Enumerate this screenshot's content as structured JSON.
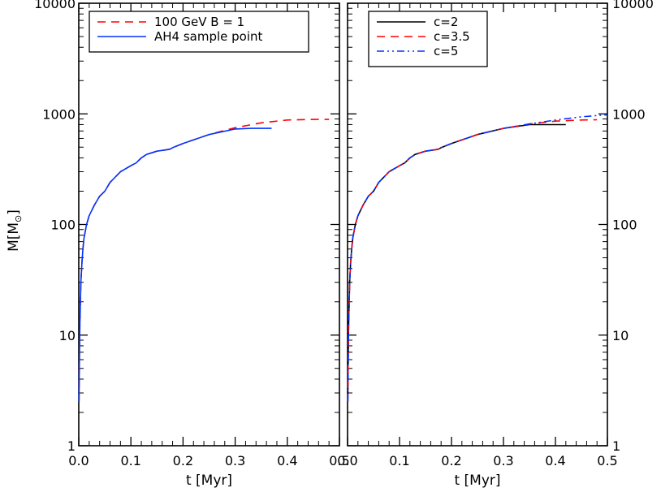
{
  "figure": {
    "y_axis_label_main": "M[M",
    "y_axis_label_sub": "⊙",
    "y_axis_label_close": "]",
    "y_ticks": [
      "1",
      "10",
      "100",
      "1000",
      "10000"
    ],
    "x_ticks": [
      "0.0",
      "0.1",
      "0.2",
      "0.3",
      "0.4",
      "0.5"
    ]
  },
  "chart_data": [
    {
      "type": "line",
      "title": "",
      "xlabel": "t [Myr]",
      "ylabel": "M[M⊙]",
      "yscale": "log",
      "xlim": [
        0.0,
        0.5
      ],
      "ylim": [
        1,
        10000
      ],
      "legend_position": "top-left",
      "series": [
        {
          "name": "100 GeV B = 1",
          "color": "#ff0000",
          "style": "dashed",
          "x": [
            0.0005,
            0.001,
            0.002,
            0.004,
            0.006,
            0.008,
            0.01,
            0.015,
            0.02,
            0.03,
            0.04,
            0.05,
            0.06,
            0.08,
            0.1,
            0.11,
            0.12,
            0.13,
            0.15,
            0.17,
            0.175,
            0.18,
            0.2,
            0.25,
            0.3,
            0.35,
            0.4,
            0.45,
            0.48
          ],
          "y": [
            2.5,
            4.5,
            12,
            30,
            45,
            60,
            75,
            100,
            120,
            150,
            180,
            200,
            240,
            300,
            340,
            360,
            400,
            430,
            460,
            475,
            480,
            495,
            540,
            650,
            750,
            830,
            880,
            890,
            890
          ]
        },
        {
          "name": "AH4 sample point",
          "color": "#0033ff",
          "style": "solid",
          "x": [
            0.0005,
            0.001,
            0.002,
            0.004,
            0.006,
            0.008,
            0.01,
            0.015,
            0.02,
            0.03,
            0.04,
            0.05,
            0.06,
            0.08,
            0.1,
            0.11,
            0.12,
            0.13,
            0.15,
            0.17,
            0.175,
            0.18,
            0.2,
            0.25,
            0.3,
            0.33,
            0.37
          ],
          "y": [
            2.5,
            4.5,
            12,
            30,
            45,
            60,
            75,
            100,
            120,
            150,
            180,
            200,
            240,
            300,
            340,
            360,
            400,
            430,
            460,
            475,
            480,
            495,
            540,
            650,
            730,
            740,
            740
          ]
        }
      ]
    },
    {
      "type": "line",
      "title": "",
      "xlabel": "t [Myr]",
      "ylabel": "",
      "yscale": "log",
      "xlim": [
        0.0,
        0.5
      ],
      "ylim": [
        1,
        10000
      ],
      "legend_position": "top-left",
      "series": [
        {
          "name": "c=2",
          "color": "#000000",
          "style": "solid",
          "x": [
            0.0005,
            0.001,
            0.002,
            0.004,
            0.006,
            0.008,
            0.01,
            0.015,
            0.02,
            0.03,
            0.04,
            0.05,
            0.06,
            0.08,
            0.1,
            0.11,
            0.12,
            0.13,
            0.15,
            0.17,
            0.175,
            0.18,
            0.2,
            0.25,
            0.3,
            0.35,
            0.38,
            0.42
          ],
          "y": [
            2.5,
            4.5,
            12,
            30,
            45,
            60,
            75,
            100,
            120,
            150,
            180,
            200,
            240,
            300,
            340,
            360,
            400,
            430,
            460,
            475,
            480,
            495,
            540,
            650,
            740,
            800,
            800,
            800
          ]
        },
        {
          "name": "c=3.5",
          "color": "#ff0000",
          "style": "dashed",
          "x": [
            0.0005,
            0.001,
            0.002,
            0.004,
            0.006,
            0.008,
            0.01,
            0.015,
            0.02,
            0.03,
            0.04,
            0.05,
            0.06,
            0.08,
            0.1,
            0.11,
            0.12,
            0.13,
            0.15,
            0.17,
            0.175,
            0.18,
            0.2,
            0.25,
            0.3,
            0.35,
            0.4,
            0.45,
            0.48
          ],
          "y": [
            2.5,
            4.5,
            12,
            30,
            45,
            60,
            75,
            100,
            120,
            150,
            180,
            200,
            240,
            300,
            340,
            360,
            400,
            430,
            460,
            475,
            480,
            495,
            540,
            650,
            740,
            810,
            860,
            880,
            885
          ]
        },
        {
          "name": "c=5",
          "color": "#0033ff",
          "style": "dashdotdot",
          "x": [
            0.0005,
            0.001,
            0.002,
            0.004,
            0.006,
            0.008,
            0.01,
            0.015,
            0.02,
            0.03,
            0.04,
            0.05,
            0.06,
            0.08,
            0.1,
            0.11,
            0.12,
            0.13,
            0.15,
            0.17,
            0.175,
            0.18,
            0.2,
            0.25,
            0.3,
            0.35,
            0.4,
            0.45,
            0.5
          ],
          "y": [
            2.5,
            4.5,
            12,
            30,
            45,
            60,
            75,
            100,
            120,
            150,
            180,
            200,
            240,
            300,
            340,
            360,
            400,
            430,
            460,
            475,
            480,
            495,
            540,
            650,
            740,
            810,
            880,
            940,
            980
          ]
        }
      ]
    }
  ]
}
